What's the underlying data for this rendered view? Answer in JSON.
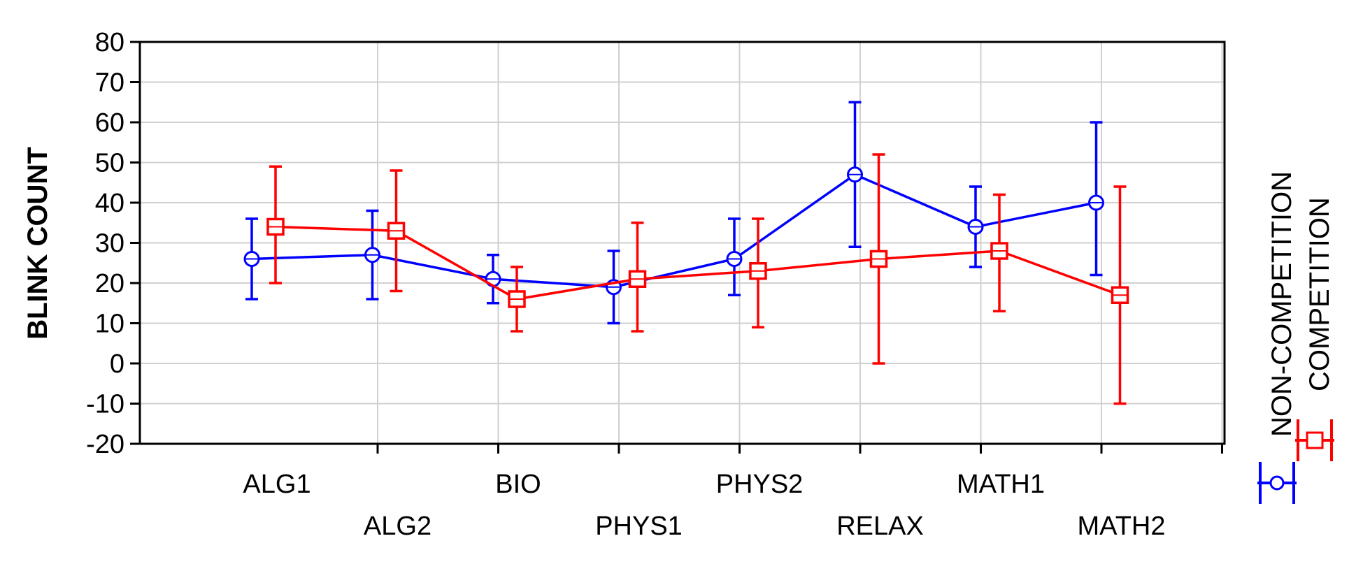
{
  "chart_data": {
    "type": "line",
    "ylabel": "BLINK COUNT",
    "ylim": [
      -20,
      80
    ],
    "yticks": [
      80,
      70,
      60,
      50,
      40,
      30,
      20,
      10,
      0,
      -10,
      -20
    ],
    "categories": [
      "ALG1",
      "ALG2",
      "BIO",
      "PHYS1",
      "PHYS2",
      "RELAX",
      "MATH1",
      "MATH2"
    ],
    "grid": true,
    "legend_position": "right, rotated vertical",
    "error_bars": true,
    "series": [
      {
        "name": "NON-COMPETITION",
        "color": "#0000ff",
        "marker": "circle",
        "values": [
          26,
          27,
          21,
          19,
          26,
          47,
          34,
          40
        ],
        "lower": [
          16,
          16,
          15,
          10,
          17,
          29,
          24,
          22
        ],
        "upper": [
          36,
          38,
          27,
          28,
          36,
          65,
          44,
          60
        ]
      },
      {
        "name": "COMPETITION",
        "color": "#ff0000",
        "marker": "square",
        "values": [
          34,
          33,
          16,
          21,
          23,
          26,
          28,
          17
        ],
        "lower": [
          20,
          18,
          8,
          8,
          9,
          0,
          13,
          -10
        ],
        "upper": [
          49,
          48,
          24,
          35,
          36,
          52,
          42,
          44
        ]
      }
    ]
  }
}
